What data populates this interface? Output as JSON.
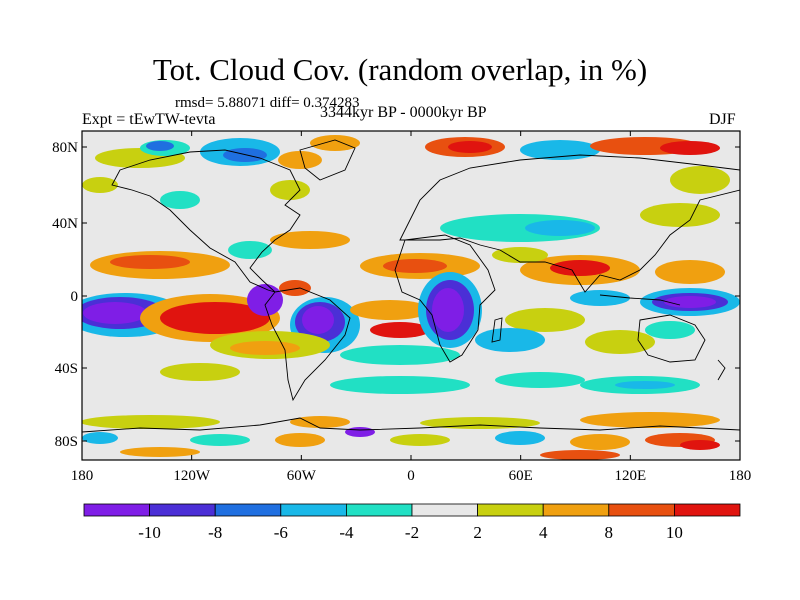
{
  "header": {
    "title": "Tot. Cloud Cov. (random overlap, in %)",
    "stats": "rmsd= 5.88071 diff= 0.374283",
    "expt": "Expt = tEwTW-tevta",
    "period": "3344kyr BP - 0000kyr BP",
    "season": "DJF"
  },
  "map": {
    "lat_labels": [
      "80N",
      "40N",
      "0",
      "40S",
      "80S"
    ],
    "lon_labels": [
      "180",
      "120W",
      "60W",
      "0",
      "60E",
      "120E",
      "180"
    ],
    "projection": "cylindrical-equidistant",
    "lon_range": [
      -180,
      180
    ],
    "lat_range": [
      -90,
      90
    ]
  },
  "colorbar": {
    "labels": [
      "-10",
      "-8",
      "-6",
      "-4",
      "-2",
      "2",
      "4",
      "8",
      "10"
    ],
    "colors": [
      "#7f1ee6",
      "#4b2fd6",
      "#1f6fe0",
      "#19b8e8",
      "#21e0c4",
      "#e8e8e8",
      "#c8d010",
      "#f0a010",
      "#e85010",
      "#e0140f"
    ]
  }
}
